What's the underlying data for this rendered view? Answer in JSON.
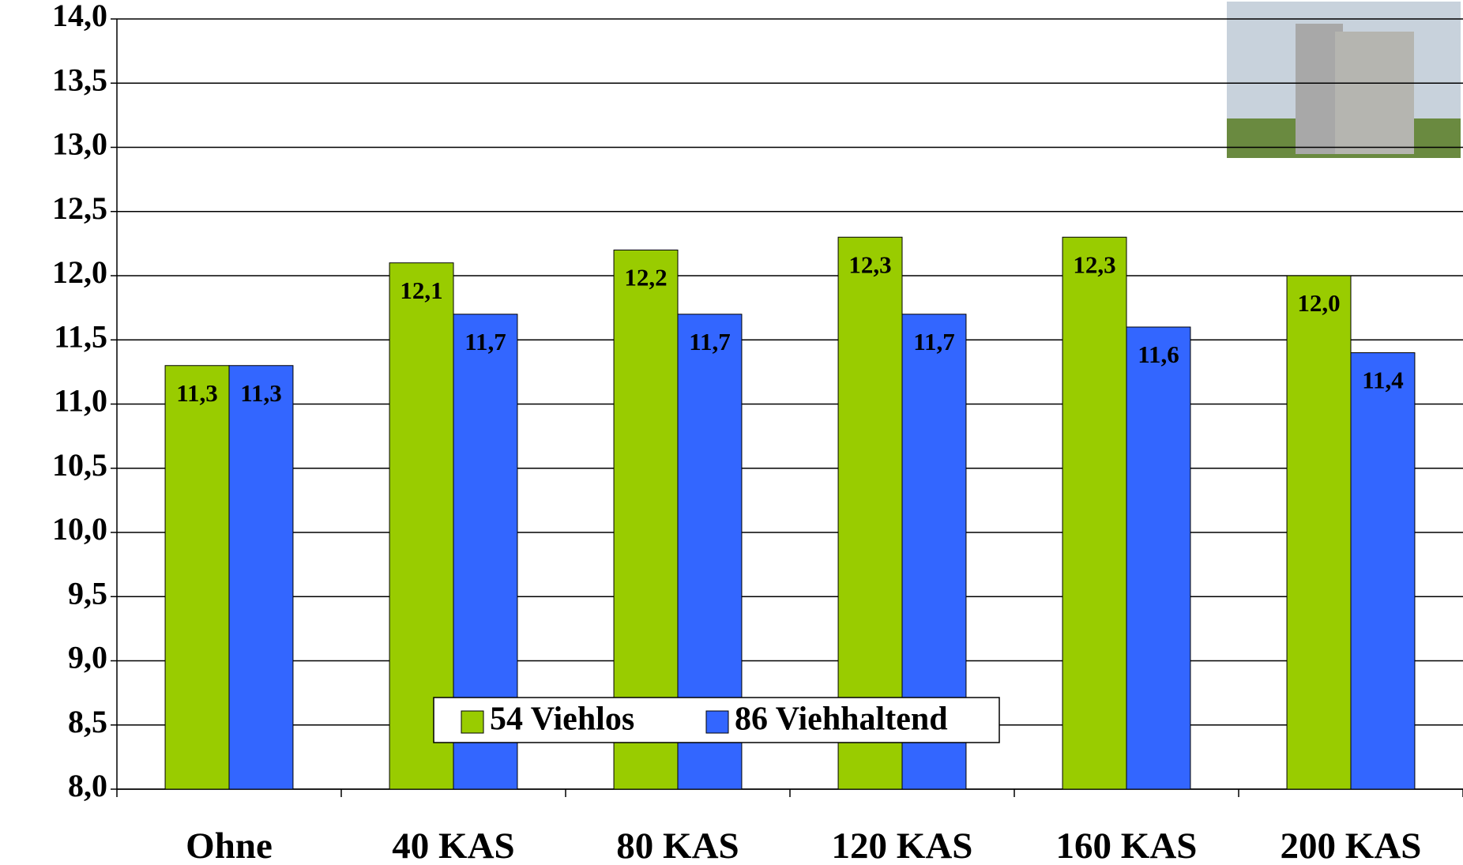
{
  "chart_data": {
    "type": "bar",
    "categories": [
      "Ohne",
      "40 KAS",
      "80 KAS",
      "120 KAS",
      "160 KAS",
      "200 KAS"
    ],
    "series": [
      {
        "name": "54 Viehlos",
        "color": "#99cc00",
        "values": [
          11.3,
          12.1,
          12.2,
          12.3,
          12.3,
          12.0
        ],
        "value_labels": [
          "11,3",
          "12,1",
          "12,2",
          "12,3",
          "12,3",
          "12,0"
        ]
      },
      {
        "name": "86 Viehhaltend",
        "color": "#3366ff",
        "values": [
          11.3,
          11.7,
          11.7,
          11.7,
          11.6,
          11.4
        ],
        "value_labels": [
          "11,3",
          "11,7",
          "11,7",
          "11,7",
          "11,6",
          "11,4"
        ]
      }
    ],
    "ylim": [
      8.0,
      14.0
    ],
    "yticks": [
      {
        "value": 8.0,
        "label": "8,0"
      },
      {
        "value": 8.5,
        "label": "8,5"
      },
      {
        "value": 9.0,
        "label": "9,0"
      },
      {
        "value": 9.5,
        "label": "9,5"
      },
      {
        "value": 10.0,
        "label": "10,0"
      },
      {
        "value": 10.5,
        "label": "10,5"
      },
      {
        "value": 11.0,
        "label": "11,0"
      },
      {
        "value": 11.5,
        "label": "11,5"
      },
      {
        "value": 12.0,
        "label": "12,0"
      },
      {
        "value": 12.5,
        "label": "12,5"
      },
      {
        "value": 13.0,
        "label": "13,0"
      },
      {
        "value": 13.5,
        "label": "13,5"
      },
      {
        "value": 14.0,
        "label": "14,0"
      }
    ],
    "grid": true,
    "legend": "bottom"
  }
}
